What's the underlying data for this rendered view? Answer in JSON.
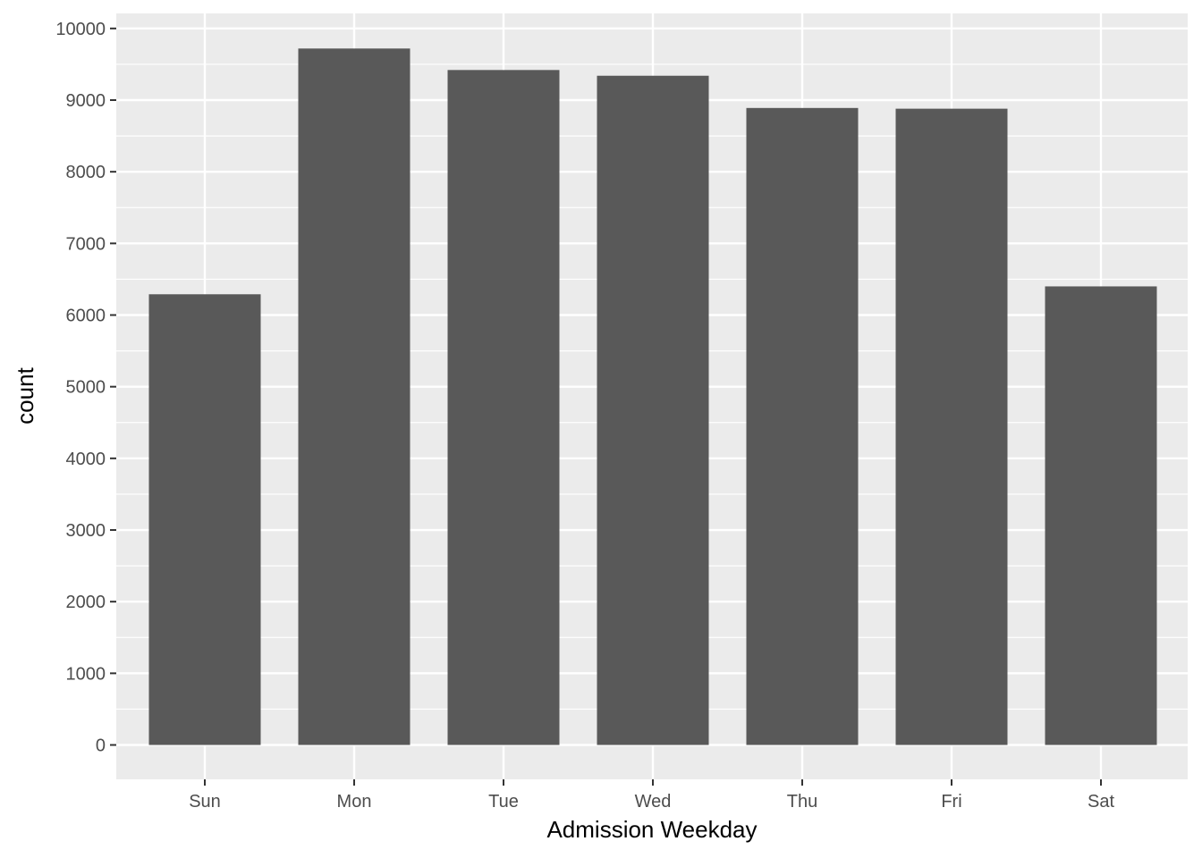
{
  "chart_data": {
    "type": "bar",
    "title": "",
    "xlabel": "Admission Weekday",
    "ylabel": "count",
    "categories": [
      "Sun",
      "Mon",
      "Tue",
      "Wed",
      "Thu",
      "Fri",
      "Sat"
    ],
    "values": [
      6290,
      9720,
      9420,
      9340,
      8890,
      8880,
      6400
    ],
    "ylim": [
      -480,
      10210
    ],
    "yticks": [
      0,
      1000,
      2000,
      3000,
      4000,
      5000,
      6000,
      7000,
      8000,
      9000,
      10000
    ],
    "ytick_labels": [
      "0",
      "1000",
      "2000",
      "3000",
      "4000",
      "5000",
      "6000",
      "7000",
      "8000",
      "9000",
      "10000"
    ],
    "grid": true,
    "legend": "none",
    "colors": {
      "panel_background": "#ebebeb",
      "grid_major": "#ffffff",
      "bar_fill": "#595959",
      "tick_text": "#4d4d4d",
      "axis_ticks": "#333333"
    }
  }
}
